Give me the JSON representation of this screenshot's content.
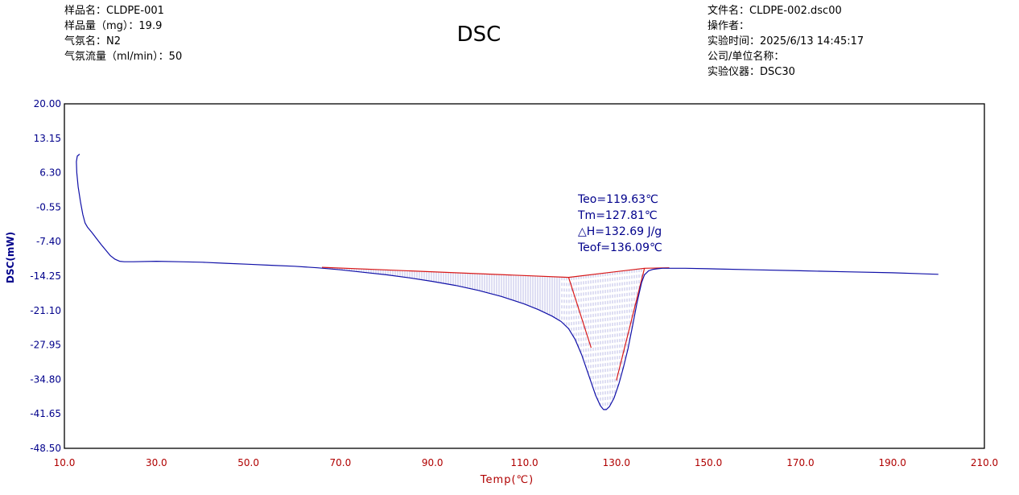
{
  "header": {
    "sample_name": "样品名：CLDPE-001",
    "sample_mass": "样品量（mg）：19.9",
    "gas_name": "气氛名：N2",
    "gas_flow": "气氛流量（ml/min）：50",
    "file_name": "文件名：CLDPE-002.dsc00",
    "operator": "操作者：",
    "test_time": "实验时间：2025/6/13 14:45:17",
    "company": "公司/单位名称：",
    "instrument": "实验仪器：DSC30"
  },
  "colors": {
    "curve": "#1010a8",
    "baseline": "#d81818",
    "y_axis_text": "#00008b",
    "x_axis_text": "#b00000",
    "frame": "#000000"
  },
  "chart_data": {
    "type": "line",
    "title": "DSC",
    "xlabel": "Temp(℃)",
    "ylabel": "DSC(mW)",
    "xlim": [
      10,
      210
    ],
    "ylim": [
      -48.5,
      20
    ],
    "x_ticks": [
      "10.0",
      "30.0",
      "50.0",
      "70.0",
      "90.0",
      "110.0",
      "130.0",
      "150.0",
      "170.0",
      "190.0",
      "210.0"
    ],
    "y_ticks": [
      "20.00",
      "13.15",
      "6.30",
      "-0.55",
      "-7.40",
      "-14.25",
      "-21.10",
      "-27.95",
      "-34.80",
      "-41.65",
      "-48.50"
    ],
    "grid": false,
    "series": [
      {
        "x": [
          13.3,
          12.8,
          12.6,
          12.7,
          13.0,
          13.5,
          14.0,
          14.5,
          15.0,
          16.0,
          17.0,
          18.0,
          19.0,
          20.0,
          21.0,
          22.0,
          23.0,
          25.0,
          30.0,
          35.0,
          40.0,
          45.0,
          50.0,
          55.0,
          60.0,
          65.0,
          70.0,
          75.0,
          80.0,
          85.0,
          90.0,
          95.0,
          100.0,
          105.0,
          110.0,
          113.0,
          116.0,
          118.0,
          119.6,
          121.0,
          122.5,
          124.0,
          125.5,
          126.5,
          127.2,
          127.8,
          128.5,
          129.5,
          130.5,
          131.5,
          132.5,
          133.5,
          134.5,
          135.5,
          136.1,
          137.0,
          138.0,
          139.0,
          140.0,
          142.0,
          145.0,
          150.0,
          160.0,
          170.0,
          180.0,
          190.0,
          200.0
        ],
        "y": [
          10.0,
          9.6,
          8.5,
          6.3,
          3.5,
          0.5,
          -2.0,
          -3.7,
          -4.5,
          -5.6,
          -6.8,
          -8.0,
          -9.1,
          -10.2,
          -10.9,
          -11.3,
          -11.4,
          -11.4,
          -11.3,
          -11.4,
          -11.5,
          -11.7,
          -11.9,
          -12.1,
          -12.3,
          -12.6,
          -13.0,
          -13.5,
          -14.0,
          -14.6,
          -15.3,
          -16.1,
          -17.1,
          -18.3,
          -19.8,
          -20.9,
          -22.2,
          -23.3,
          -24.7,
          -26.8,
          -30.0,
          -34.0,
          -38.0,
          -40.0,
          -40.8,
          -40.8,
          -40.2,
          -38.5,
          -35.8,
          -32.5,
          -28.8,
          -24.2,
          -19.5,
          -15.5,
          -14.0,
          -13.2,
          -12.9,
          -12.8,
          -12.7,
          -12.7,
          -12.7,
          -12.8,
          -13.0,
          -13.2,
          -13.4,
          -13.6,
          -13.9
        ]
      }
    ],
    "baseline": {
      "x": [
        66.0,
        119.6,
        136.1,
        141.5
      ],
      "y": [
        -12.5,
        -14.5,
        -12.7,
        -12.6
      ]
    },
    "tangents": [
      {
        "x": [
          119.6,
          124.5
        ],
        "y": [
          -14.5,
          -28.5
        ]
      },
      {
        "x": [
          130.0,
          136.1
        ],
        "y": [
          -35.0,
          -12.7
        ]
      }
    ],
    "integration_range": [
      66.0,
      136.1
    ],
    "annotations": [
      "Teo=119.63℃",
      "Tm=127.81℃",
      "△H=132.69 J/g",
      "Teof=136.09℃"
    ]
  }
}
